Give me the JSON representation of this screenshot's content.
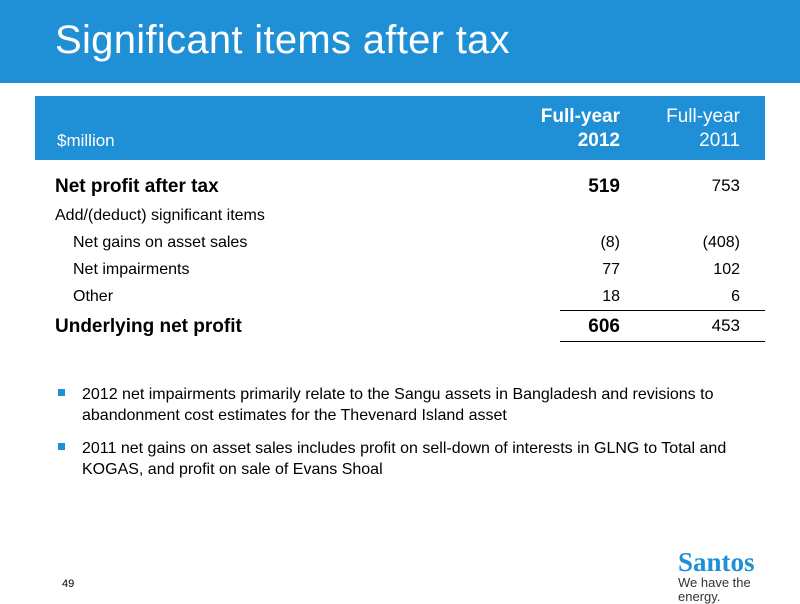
{
  "title": "Significant items after tax",
  "table": {
    "unit": "$million",
    "col1_line1": "Full-year",
    "col1_line2": "2012",
    "col2_line1": "Full-year",
    "col2_line2": "2011",
    "rows": [
      {
        "label": "Net profit after tax",
        "v2012": "519",
        "v2011": "753"
      },
      {
        "label": "Add/(deduct) significant items",
        "v2012": "",
        "v2011": ""
      },
      {
        "label": "Net gains on asset sales",
        "v2012": "(8)",
        "v2011": "(408)"
      },
      {
        "label": "Net impairments",
        "v2012": "77",
        "v2011": "102"
      },
      {
        "label": "Other",
        "v2012": "18",
        "v2011": "6"
      },
      {
        "label": "Underlying net profit",
        "v2012": "606",
        "v2011": "453"
      }
    ]
  },
  "bullets": [
    "2012 net impairments primarily relate to the Sangu assets in Bangladesh and revisions to abandonment cost estimates for the Thevenard Island asset",
    "2011 net gains on asset sales includes profit on sell-down of interests in GLNG to Total and KOGAS, and profit on sale of Evans Shoal"
  ],
  "page_number": "49",
  "logo": {
    "brand": "Santos",
    "tagline": "We have the energy."
  },
  "colors": {
    "accent": "#1f8fd6"
  }
}
